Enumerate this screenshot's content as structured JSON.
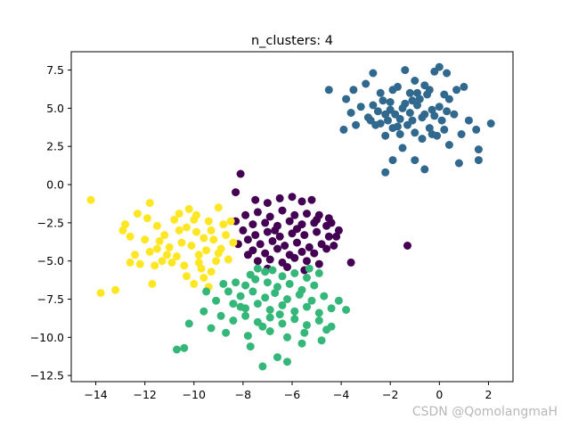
{
  "watermark": "CSDN @QomolangmaH",
  "chart_data": {
    "type": "scatter",
    "title": "n_clusters: 4",
    "xlabel": "",
    "ylabel": "",
    "xlim": [
      -15.0,
      3.0
    ],
    "ylim": [
      -12.9,
      8.7
    ],
    "xticks": [
      -14,
      -12,
      -10,
      -8,
      -6,
      -4,
      -2,
      0,
      2
    ],
    "yticks": [
      -12.5,
      -10.0,
      -7.5,
      -5.0,
      -2.5,
      0.0,
      2.5,
      5.0,
      7.5
    ],
    "grid": false,
    "legend": "none",
    "colors": {
      "cluster_0": "#440154",
      "cluster_1": "#31688e",
      "cluster_2": "#35b779",
      "cluster_3": "#fde725"
    },
    "series": [
      {
        "color_key": "cluster_1",
        "points": [
          [
            -4.5,
            6.2
          ],
          [
            -3.8,
            5.6
          ],
          [
            -3.5,
            6.2
          ],
          [
            -3.2,
            5.1
          ],
          [
            -3.6,
            4.7
          ],
          [
            -3.0,
            6.6
          ],
          [
            -2.7,
            7.3
          ],
          [
            -2.4,
            6.0
          ],
          [
            -2.0,
            5.4
          ],
          [
            -1.7,
            6.4
          ],
          [
            -1.4,
            7.5
          ],
          [
            -1.0,
            6.8
          ],
          [
            -0.6,
            6.5
          ],
          [
            -0.2,
            7.4
          ],
          [
            0.0,
            7.7
          ],
          [
            0.3,
            7.3
          ],
          [
            0.7,
            6.2
          ],
          [
            1.0,
            6.4
          ],
          [
            -2.9,
            4.4
          ],
          [
            -2.5,
            4.8
          ],
          [
            -2.1,
            4.2
          ],
          [
            -1.8,
            4.6
          ],
          [
            -1.5,
            5.0
          ],
          [
            -1.2,
            4.7
          ],
          [
            -0.9,
            5.2
          ],
          [
            -0.6,
            4.6
          ],
          [
            -0.3,
            4.9
          ],
          [
            0.0,
            5.1
          ],
          [
            0.3,
            4.8
          ],
          [
            0.6,
            4.6
          ],
          [
            -1.9,
            3.7
          ],
          [
            -1.6,
            3.3
          ],
          [
            -1.3,
            3.9
          ],
          [
            -1.0,
            3.4
          ],
          [
            -0.7,
            3.0
          ],
          [
            -0.4,
            3.7
          ],
          [
            -0.1,
            3.2
          ],
          [
            0.2,
            3.6
          ],
          [
            -3.4,
            3.9
          ],
          [
            -3.9,
            3.6
          ],
          [
            -2.2,
            3.2
          ],
          [
            -1.5,
            2.4
          ],
          [
            -1.1,
            4.2
          ],
          [
            -0.8,
            5.6
          ],
          [
            -0.5,
            5.9
          ],
          [
            -2.6,
            3.9
          ],
          [
            -2.3,
            5.5
          ],
          [
            -1.9,
            6.2
          ],
          [
            -1.2,
            6.0
          ],
          [
            -0.4,
            6.2
          ],
          [
            0.4,
            5.6
          ],
          [
            1.2,
            4.2
          ],
          [
            1.5,
            3.6
          ],
          [
            2.1,
            4.0
          ],
          [
            1.6,
            2.3
          ],
          [
            1.6,
            1.6
          ],
          [
            0.9,
            3.3
          ],
          [
            0.8,
            1.4
          ],
          [
            -0.6,
            1.0
          ],
          [
            -1.9,
            1.6
          ],
          [
            -2.2,
            0.8
          ],
          [
            -1.0,
            1.6
          ],
          [
            -0.3,
            3.3
          ],
          [
            0.4,
            2.6
          ],
          [
            -2.8,
            4.2
          ],
          [
            -2.0,
            4.9
          ],
          [
            -1.4,
            5.3
          ],
          [
            -0.7,
            4.4
          ],
          [
            -0.2,
            4.5
          ],
          [
            0.1,
            4.2
          ],
          [
            -1.6,
            4.3
          ],
          [
            -2.4,
            4.0
          ],
          [
            -2.7,
            5.2
          ],
          [
            -1.1,
            5.5
          ],
          [
            0.2,
            5.9
          ],
          [
            -0.9,
            6.0
          ],
          [
            -2.2,
            4.6
          ],
          [
            -1.7,
            3.8
          ]
        ]
      },
      {
        "color_key": "cluster_0",
        "points": [
          [
            -8.1,
            0.7
          ],
          [
            -8.3,
            -0.5
          ],
          [
            -7.5,
            -1.0
          ],
          [
            -7.0,
            -1.2
          ],
          [
            -6.5,
            -0.9
          ],
          [
            -6.0,
            -0.8
          ],
          [
            -5.6,
            -1.1
          ],
          [
            -5.2,
            -1.0
          ],
          [
            -7.9,
            -2.0
          ],
          [
            -7.4,
            -1.8
          ],
          [
            -6.9,
            -2.1
          ],
          [
            -6.4,
            -1.7
          ],
          [
            -5.9,
            -2.0
          ],
          [
            -5.4,
            -1.9
          ],
          [
            -4.9,
            -2.0
          ],
          [
            -4.5,
            -2.2
          ],
          [
            -8.3,
            -2.4
          ],
          [
            -7.6,
            -2.6
          ],
          [
            -7.1,
            -2.5
          ],
          [
            -6.6,
            -2.7
          ],
          [
            -6.1,
            -2.4
          ],
          [
            -5.6,
            -2.6
          ],
          [
            -5.1,
            -2.5
          ],
          [
            -4.6,
            -2.7
          ],
          [
            -8.0,
            -3.0
          ],
          [
            -7.5,
            -3.3
          ],
          [
            -7.0,
            -3.1
          ],
          [
            -6.5,
            -3.4
          ],
          [
            -6.0,
            -3.2
          ],
          [
            -5.5,
            -3.3
          ],
          [
            -5.0,
            -3.1
          ],
          [
            -4.5,
            -3.4
          ],
          [
            -4.1,
            -3.0
          ],
          [
            -7.8,
            -3.6
          ],
          [
            -7.3,
            -3.9
          ],
          [
            -6.8,
            -3.7
          ],
          [
            -6.3,
            -4.0
          ],
          [
            -5.8,
            -3.8
          ],
          [
            -5.3,
            -4.1
          ],
          [
            -4.8,
            -3.9
          ],
          [
            -4.3,
            -4.0
          ],
          [
            -7.6,
            -4.3
          ],
          [
            -7.1,
            -4.5
          ],
          [
            -6.6,
            -4.2
          ],
          [
            -6.1,
            -4.6
          ],
          [
            -5.6,
            -4.4
          ],
          [
            -5.1,
            -4.5
          ],
          [
            -4.6,
            -4.2
          ],
          [
            -7.4,
            -5.0
          ],
          [
            -6.9,
            -4.9
          ],
          [
            -6.4,
            -5.1
          ],
          [
            -5.9,
            -4.8
          ],
          [
            -5.4,
            -5.0
          ],
          [
            -4.9,
            -5.2
          ],
          [
            -6.2,
            -5.4
          ],
          [
            -5.5,
            -5.6
          ],
          [
            -7.0,
            -5.5
          ],
          [
            -3.6,
            -5.1
          ],
          [
            -1.3,
            -4.0
          ],
          [
            -4.2,
            -3.4
          ],
          [
            -8.2,
            -3.9
          ],
          [
            -7.8,
            -4.6
          ],
          [
            -6.7,
            -3.0
          ],
          [
            -5.8,
            -2.9
          ],
          [
            -5.0,
            -2.3
          ],
          [
            -4.4,
            -2.5
          ]
        ]
      },
      {
        "color_key": "cluster_3",
        "points": [
          [
            -14.2,
            -1.0
          ],
          [
            -13.8,
            -7.1
          ],
          [
            -13.2,
            -6.9
          ],
          [
            -12.8,
            -2.6
          ],
          [
            -12.6,
            -3.4
          ],
          [
            -12.3,
            -1.9
          ],
          [
            -12.4,
            -4.6
          ],
          [
            -12.6,
            -5.1
          ],
          [
            -11.8,
            -1.2
          ],
          [
            -11.9,
            -2.2
          ],
          [
            -11.7,
            -6.5
          ],
          [
            -11.5,
            -2.7
          ],
          [
            -11.2,
            -3.3
          ],
          [
            -11.0,
            -4.1
          ],
          [
            -11.3,
            -5.0
          ],
          [
            -11.6,
            -5.3
          ],
          [
            -10.8,
            -2.3
          ],
          [
            -10.6,
            -3.0
          ],
          [
            -10.5,
            -3.8
          ],
          [
            -10.7,
            -4.7
          ],
          [
            -10.4,
            -5.3
          ],
          [
            -10.2,
            -1.6
          ],
          [
            -10.0,
            -2.3
          ],
          [
            -9.9,
            -3.1
          ],
          [
            -10.1,
            -4.0
          ],
          [
            -9.8,
            -4.6
          ],
          [
            -9.7,
            -5.5
          ],
          [
            -9.6,
            -6.1
          ],
          [
            -9.4,
            -2.4
          ],
          [
            -9.3,
            -3.0
          ],
          [
            -9.2,
            -3.6
          ],
          [
            -9.5,
            -4.3
          ],
          [
            -9.1,
            -5.0
          ],
          [
            -9.3,
            -5.7
          ],
          [
            -9.0,
            -1.5
          ],
          [
            -8.8,
            -2.6
          ],
          [
            -8.7,
            -3.3
          ],
          [
            -8.9,
            -4.2
          ],
          [
            -8.6,
            -4.9
          ],
          [
            -8.4,
            -3.8
          ],
          [
            -10.3,
            -6.0
          ],
          [
            -10.0,
            -6.5
          ],
          [
            -11.1,
            -4.6
          ],
          [
            -12.0,
            -3.6
          ],
          [
            -12.9,
            -3.0
          ],
          [
            -11.4,
            -3.7
          ],
          [
            -10.9,
            -5.1
          ],
          [
            -9.9,
            -2.0
          ],
          [
            -9.6,
            -3.5
          ],
          [
            -8.5,
            -2.4
          ],
          [
            -9.4,
            -6.7
          ],
          [
            -11.8,
            -4.4
          ],
          [
            -12.2,
            -5.2
          ],
          [
            -10.6,
            -1.9
          ],
          [
            -11.5,
            -4.2
          ],
          [
            -10.3,
            -2.8
          ],
          [
            -9.0,
            -4.5
          ],
          [
            -9.8,
            -5.1
          ]
        ]
      },
      {
        "color_key": "cluster_2",
        "points": [
          [
            -7.4,
            -5.5
          ],
          [
            -7.7,
            -5.9
          ],
          [
            -7.1,
            -5.7
          ],
          [
            -6.8,
            -5.6
          ],
          [
            -6.4,
            -6.0
          ],
          [
            -5.9,
            -5.8
          ],
          [
            -5.4,
            -6.1
          ],
          [
            -8.3,
            -6.4
          ],
          [
            -7.9,
            -6.6
          ],
          [
            -7.5,
            -6.2
          ],
          [
            -7.0,
            -6.4
          ],
          [
            -6.6,
            -6.7
          ],
          [
            -6.1,
            -6.5
          ],
          [
            -5.6,
            -6.9
          ],
          [
            -5.1,
            -6.6
          ],
          [
            -8.6,
            -7.0
          ],
          [
            -8.1,
            -7.3
          ],
          [
            -7.6,
            -7.0
          ],
          [
            -7.1,
            -7.4
          ],
          [
            -6.7,
            -7.1
          ],
          [
            -6.2,
            -7.5
          ],
          [
            -5.7,
            -7.2
          ],
          [
            -5.2,
            -7.6
          ],
          [
            -4.7,
            -7.3
          ],
          [
            -9.1,
            -7.6
          ],
          [
            -8.4,
            -7.8
          ],
          [
            -7.9,
            -8.1
          ],
          [
            -7.4,
            -7.8
          ],
          [
            -6.9,
            -8.2
          ],
          [
            -6.4,
            -7.9
          ],
          [
            -5.9,
            -8.3
          ],
          [
            -5.4,
            -8.0
          ],
          [
            -4.9,
            -8.4
          ],
          [
            -4.4,
            -8.1
          ],
          [
            -9.6,
            -8.3
          ],
          [
            -8.9,
            -8.6
          ],
          [
            -8.4,
            -8.9
          ],
          [
            -7.9,
            -8.6
          ],
          [
            -7.4,
            -9.0
          ],
          [
            -6.9,
            -8.7
          ],
          [
            -6.4,
            -9.1
          ],
          [
            -5.9,
            -8.8
          ],
          [
            -5.4,
            -9.2
          ],
          [
            -4.9,
            -8.9
          ],
          [
            -4.4,
            -9.3
          ],
          [
            -10.2,
            -9.1
          ],
          [
            -9.3,
            -9.4
          ],
          [
            -8.7,
            -9.7
          ],
          [
            -7.8,
            -9.9
          ],
          [
            -6.9,
            -9.6
          ],
          [
            -6.2,
            -10.0
          ],
          [
            -5.5,
            -9.7
          ],
          [
            -4.8,
            -10.2
          ],
          [
            -10.4,
            -10.7
          ],
          [
            -10.7,
            -10.8
          ],
          [
            -7.7,
            -10.6
          ],
          [
            -6.6,
            -11.3
          ],
          [
            -6.2,
            -11.6
          ],
          [
            -7.2,
            -11.9
          ],
          [
            -5.6,
            -10.4
          ],
          [
            -3.8,
            -8.2
          ],
          [
            -4.1,
            -7.6
          ],
          [
            -4.6,
            -9.5
          ],
          [
            -8.8,
            -6.5
          ],
          [
            -9.5,
            -7.0
          ],
          [
            -5.3,
            -5.5
          ],
          [
            -4.9,
            -5.8
          ],
          [
            -6.5,
            -8.5
          ],
          [
            -7.2,
            -9.3
          ],
          [
            -8.1,
            -8.0
          ]
        ]
      }
    ]
  }
}
